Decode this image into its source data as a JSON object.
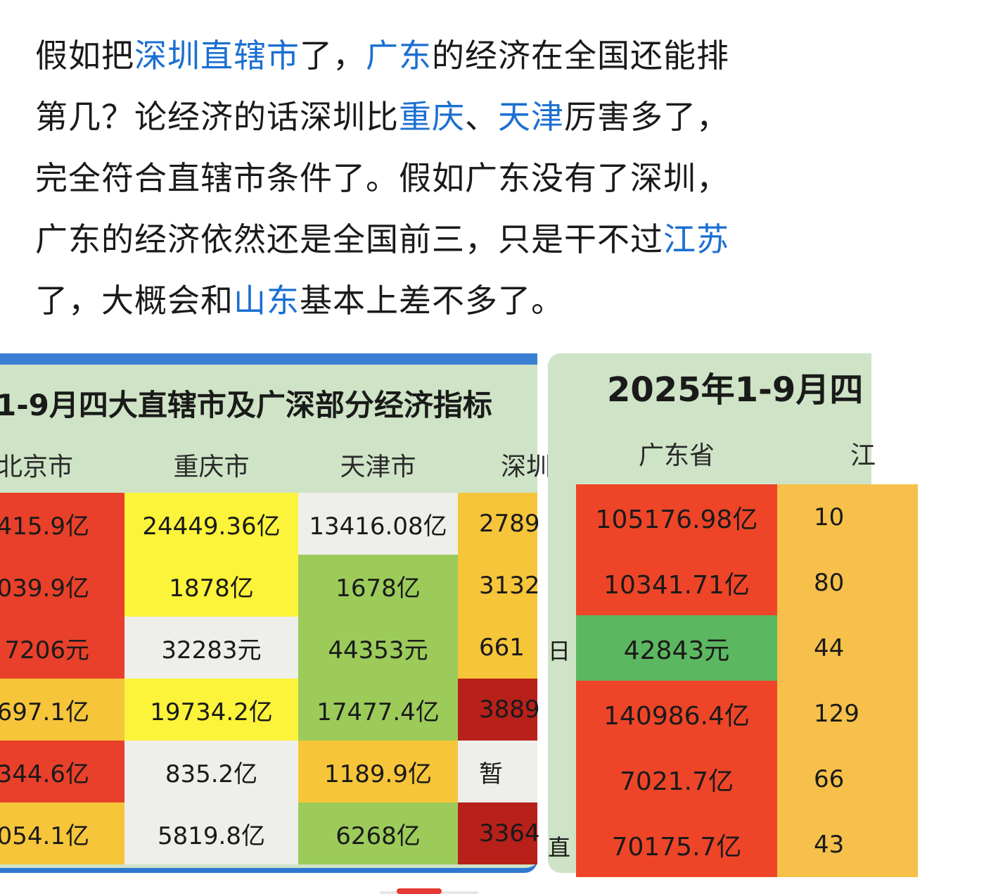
{
  "article": {
    "lines": [
      [
        {
          "t": "假如把"
        },
        {
          "t": "深圳直辖市",
          "link": true
        },
        {
          "t": "了，"
        },
        {
          "t": "广东",
          "link": true
        },
        {
          "t": "的经济在全国还能排"
        }
      ],
      [
        {
          "t": "第几？论经济的话深圳比"
        },
        {
          "t": "重庆",
          "link": true
        },
        {
          "t": "、"
        },
        {
          "t": "天津",
          "link": true
        },
        {
          "t": "厉害多了，"
        }
      ],
      [
        {
          "t": "完全符合直辖市条件了。假如广东没有了深圳，"
        }
      ],
      [
        {
          "t": "广东的经济依然还是全国前三，只是干不过"
        },
        {
          "t": "江苏",
          "link": true
        }
      ],
      [
        {
          "t": "了，大概会和"
        },
        {
          "t": "山东",
          "link": true
        },
        {
          "t": "基本上差不多了。"
        }
      ]
    ]
  },
  "left_image": {
    "title": "1-9月四大直辖市及广深部分经济指标",
    "headers": [
      "北京市",
      "重庆市",
      "天津市",
      "深圳"
    ],
    "columns": [
      {
        "cells": [
          {
            "v": "415.9亿",
            "c": "#e8402a"
          },
          {
            "v": "039.9亿",
            "c": "#e8402a"
          },
          {
            "v": "7206元",
            "c": "#e8402a"
          },
          {
            "v": "697.1亿",
            "c": "#f6c53a"
          },
          {
            "v": "344.6亿",
            "c": "#e8402a"
          },
          {
            "v": "054.1亿",
            "c": "#f6c53a"
          }
        ]
      },
      {
        "cells": [
          {
            "v": "24449.36亿",
            "c": "#fcf43a"
          },
          {
            "v": "1878亿",
            "c": "#fcf43a"
          },
          {
            "v": "32283元",
            "c": "#eeeeea"
          },
          {
            "v": "19734.2亿",
            "c": "#fcf43a"
          },
          {
            "v": "835.2亿",
            "c": "#eeeeea"
          },
          {
            "v": "5819.8亿",
            "c": "#eeeeea"
          }
        ]
      },
      {
        "cells": [
          {
            "v": "13416.08亿",
            "c": "#eeeeea"
          },
          {
            "v": "1678亿",
            "c": "#9ccb5a"
          },
          {
            "v": "44353元",
            "c": "#9ccb5a"
          },
          {
            "v": "17477.4亿",
            "c": "#9ccb5a"
          },
          {
            "v": "1189.9亿",
            "c": "#f6c53a"
          },
          {
            "v": "6268亿",
            "c": "#9ccb5a"
          }
        ]
      },
      {
        "cells": [
          {
            "v": "2789",
            "c": "#f6c53a"
          },
          {
            "v": "3132",
            "c": "#f6c53a"
          },
          {
            "v": "661",
            "c": "#f6c53a"
          },
          {
            "v": "3889",
            "c": "#b8201a"
          },
          {
            "v": "暂",
            "c": "#eeeeea"
          },
          {
            "v": "3364",
            "c": "#b8201a"
          }
        ]
      }
    ]
  },
  "right_image": {
    "title": "2025年1-9月四",
    "headers": [
      "广东省",
      "江"
    ],
    "row_tags": [
      "",
      "",
      "日",
      "",
      "",
      "直"
    ],
    "columns": [
      {
        "cells": [
          {
            "v": "105176.98亿",
            "c": "#ee4528"
          },
          {
            "v": "10341.71亿",
            "c": "#ee4528"
          },
          {
            "v": "42843元",
            "c": "#5cb860"
          },
          {
            "v": "140986.4亿",
            "c": "#ee4528"
          },
          {
            "v": "7021.7亿",
            "c": "#ee4528"
          },
          {
            "v": "70175.7亿",
            "c": "#ee4528"
          }
        ]
      },
      {
        "cells": [
          {
            "v": "10",
            "c": "#f6c04a"
          },
          {
            "v": "80",
            "c": "#f6c04a"
          },
          {
            "v": "44",
            "c": "#f6c04a"
          },
          {
            "v": "129",
            "c": "#f6c04a"
          },
          {
            "v": "66",
            "c": "#f6c04a"
          },
          {
            "v": "43",
            "c": "#f6c04a"
          }
        ]
      }
    ]
  }
}
